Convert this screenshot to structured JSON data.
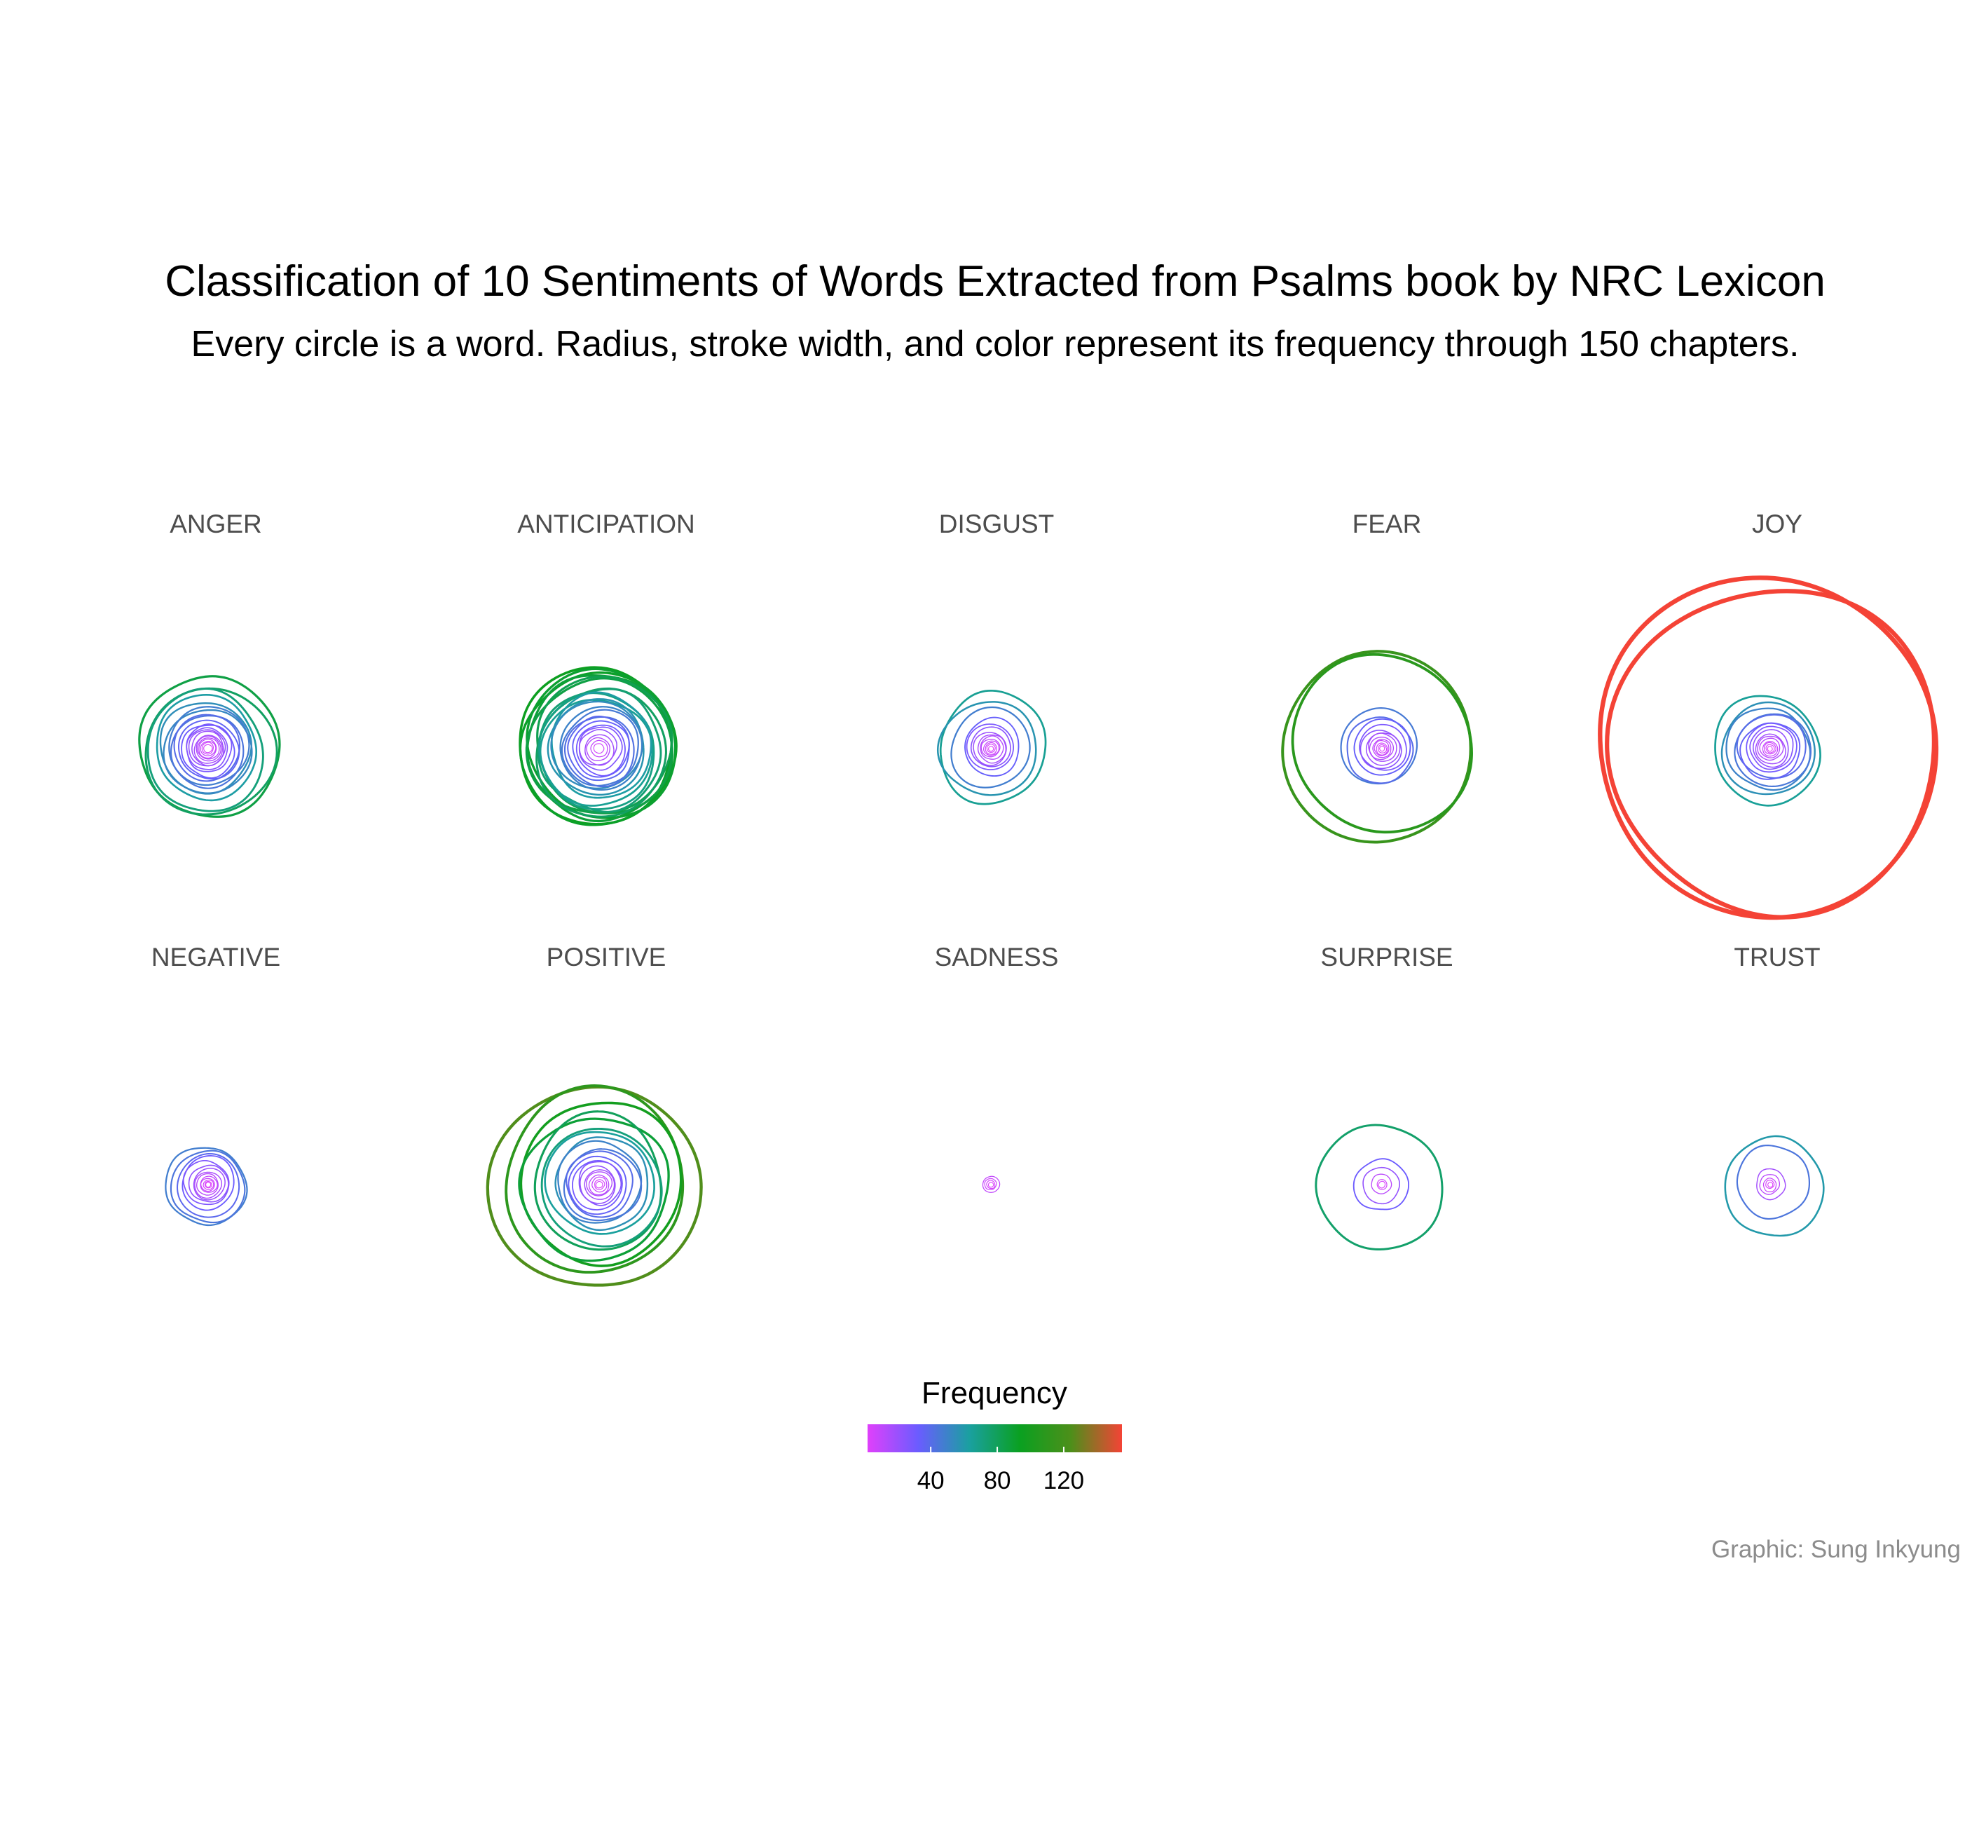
{
  "chart_data": {
    "type": "scatter",
    "title": "Classification of 10 Sentiments of Words Extracted from Psalms book by NRC Lexicon",
    "subtitle": "Every circle is a word. Radius, stroke width, and color represent its frequency through 150 chapters.",
    "caption": "Graphic: Sung Inkyung",
    "panels": [
      {
        "label": "ANGER",
        "word_frequencies": [
          85,
          78,
          72,
          62,
          55,
          52,
          48,
          44,
          40,
          36,
          32,
          28,
          25,
          22,
          20,
          17,
          15,
          13,
          11,
          9,
          7,
          5
        ]
      },
      {
        "label": "ANTICIPATION",
        "word_frequencies": [
          95,
          92,
          90,
          88,
          85,
          82,
          78,
          74,
          70,
          66,
          62,
          58,
          54,
          50,
          46,
          42,
          38,
          34,
          30,
          26,
          22,
          18,
          14,
          10,
          6
        ]
      },
      {
        "label": "DISGUST",
        "word_frequencies": [
          66,
          58,
          48,
          34,
          28,
          24,
          20,
          17,
          14,
          11,
          9,
          7,
          5,
          3
        ]
      },
      {
        "label": "FEAR",
        "word_frequencies": [
          115,
          108,
          46,
          40,
          34,
          28,
          24,
          20,
          17,
          14,
          11,
          9,
          7,
          5,
          3
        ]
      },
      {
        "label": "JOY",
        "word_frequencies": [
          205,
          198,
          65,
          56,
          50,
          45,
          40,
          35,
          30,
          26,
          22,
          18,
          15,
          12,
          9,
          7,
          5,
          3
        ]
      },
      {
        "label": "NEGATIVE",
        "word_frequencies": [
          48,
          44,
          38,
          32,
          27,
          23,
          19,
          16,
          13,
          10,
          8,
          6,
          4,
          3
        ]
      },
      {
        "label": "POSITIVE",
        "word_frequencies": [
          125,
          110,
          98,
          88,
          80,
          72,
          64,
          56,
          50,
          45,
          40,
          35,
          30,
          26,
          22,
          18,
          15,
          12,
          9,
          6,
          4
        ]
      },
      {
        "label": "SADNESS",
        "word_frequencies": [
          10,
          7,
          5,
          3
        ]
      },
      {
        "label": "SURPRISE",
        "word_frequencies": [
          76,
          32,
          22,
          12,
          6,
          4
        ]
      },
      {
        "label": "TRUST",
        "word_frequencies": [
          60,
          44,
          18,
          12,
          8,
          5,
          3
        ]
      }
    ],
    "legend": {
      "title": "Frequency",
      "ticks": [
        "40",
        "80",
        "120"
      ],
      "tick_values": [
        40,
        80,
        120
      ],
      "range": [
        2,
        155
      ],
      "colors": [
        "#e040fb",
        "#6a5cff",
        "#1aa0a0",
        "#0aa020",
        "#4d8f1a",
        "#f44336"
      ],
      "position": "bottom"
    }
  }
}
